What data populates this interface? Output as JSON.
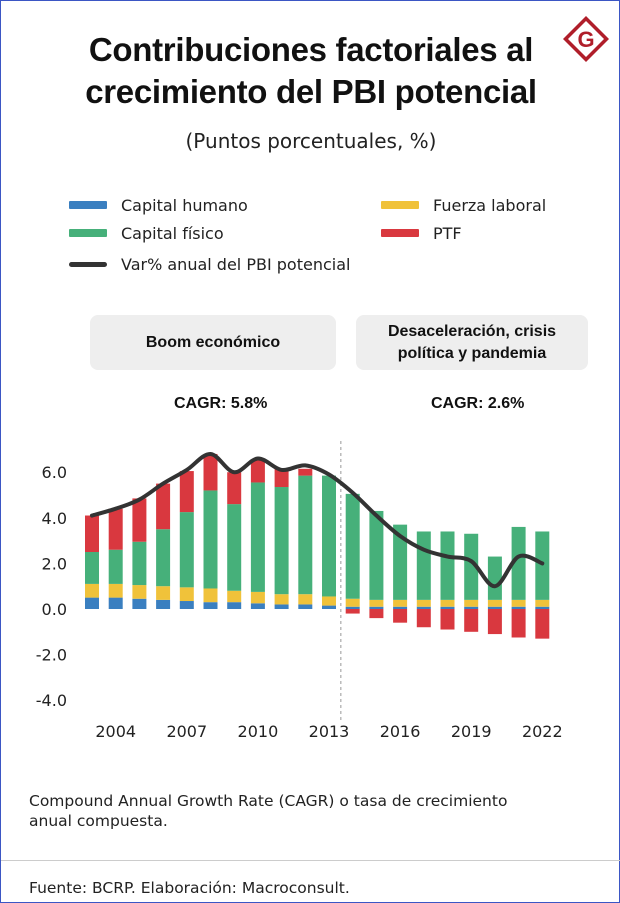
{
  "title_lines": [
    "Contribuciones factoriales al",
    "crecimiento del PBI potencial"
  ],
  "legend": [
    {
      "label": "Capital humano",
      "color": "#3a7fc0"
    },
    {
      "label": "Capital físico",
      "color": "#46b07a"
    },
    {
      "label": "Fuerza laboral",
      "color": "#f0c23a"
    },
    {
      "label": "PTF",
      "color": "#d9383f"
    },
    {
      "label": "Var% anual del PBI potencial",
      "color": "#333333"
    }
  ],
  "periods": [
    {
      "label": "Boom económico",
      "cagr": "CAGR: 5.8%"
    },
    {
      "label_lines": [
        "Desaceleración, crisis",
        "política y pandemia"
      ],
      "cagr": "CAGR: 2.6%"
    }
  ],
  "note": "Compound Annual Growth Rate (CAGR) o tasa de crecimiento anual compuesta.",
  "source": "Fuente: BCRP. Elaboración: Macroconsult.",
  "chart_data": {
    "type": "bar",
    "title": "Contribuciones factoriales al crecimiento del PBI potencial",
    "subtitle": "(Puntos porcentuales, %)",
    "stacked": true,
    "categories": [
      2003,
      2004,
      2005,
      2006,
      2007,
      2008,
      2009,
      2010,
      2011,
      2012,
      2013,
      2014,
      2015,
      2016,
      2017,
      2018,
      2019,
      2020,
      2021,
      2022
    ],
    "tick_labels": [
      "2004",
      "2007",
      "2010",
      "2013",
      "2016",
      "2019",
      "2022"
    ],
    "y_tick_labels": [
      "6.0",
      "4.0",
      "2.0",
      "0.0",
      "-2.0",
      "-4.0"
    ],
    "ylim": [
      -4.0,
      6.0
    ],
    "divider_after": 2013,
    "series": [
      {
        "name": "Capital humano",
        "color": "#3a7fc0",
        "values": [
          0.5,
          0.5,
          0.45,
          0.4,
          0.35,
          0.3,
          0.3,
          0.25,
          0.2,
          0.2,
          0.15,
          0.1,
          0.1,
          0.1,
          0.1,
          0.1,
          0.1,
          0.1,
          0.1,
          0.1
        ]
      },
      {
        "name": "Fuerza laboral",
        "color": "#f0c23a",
        "values": [
          0.6,
          0.6,
          0.6,
          0.6,
          0.6,
          0.6,
          0.5,
          0.5,
          0.45,
          0.45,
          0.4,
          0.35,
          0.3,
          0.3,
          0.3,
          0.3,
          0.3,
          0.3,
          0.3,
          0.3
        ]
      },
      {
        "name": "Capital físico",
        "color": "#46b07a",
        "values": [
          1.4,
          1.5,
          1.9,
          2.5,
          3.3,
          4.3,
          3.8,
          4.8,
          4.7,
          5.2,
          5.3,
          4.6,
          3.9,
          3.3,
          3.0,
          3.0,
          2.9,
          1.9,
          3.2,
          3.0
        ]
      },
      {
        "name": "PTF",
        "color": "#d9383f",
        "values": [
          1.6,
          1.8,
          1.9,
          2.0,
          1.8,
          1.6,
          1.4,
          1.0,
          0.8,
          0.3,
          0.0,
          -0.2,
          -0.4,
          -0.6,
          -0.8,
          -0.9,
          -1.0,
          -1.1,
          -1.25,
          -1.3
        ]
      },
      {
        "name": "Var% anual del PBI potencial",
        "type": "line",
        "color": "#333333",
        "values": [
          4.1,
          4.4,
          4.8,
          5.5,
          6.1,
          6.8,
          6.0,
          6.6,
          6.1,
          6.3,
          5.9,
          5.1,
          4.1,
          3.2,
          2.6,
          2.3,
          2.1,
          1.0,
          2.3,
          2.0
        ]
      }
    ]
  }
}
